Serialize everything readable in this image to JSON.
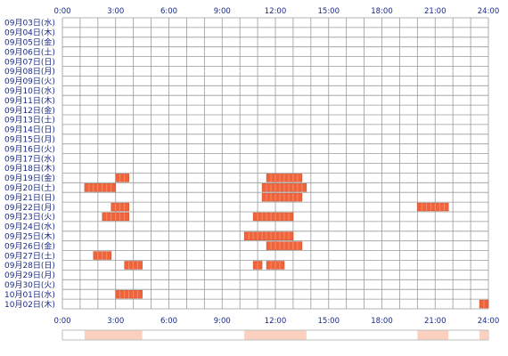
{
  "chart_data": {
    "type": "heatmap",
    "x_ticks": [
      "0:00",
      "3:00",
      "6:00",
      "9:00",
      "12:00",
      "15:00",
      "18:00",
      "21:00",
      "24:00"
    ],
    "x_range_hours": [
      0,
      24
    ],
    "rows": [
      "09月03日(水)",
      "09月04日(木)",
      "09月05日(金)",
      "09月06日(土)",
      "09月07日(日)",
      "09月08日(月)",
      "09月09日(火)",
      "09月10日(水)",
      "09月11日(木)",
      "09月12日(金)",
      "09月13日(土)",
      "09月14日(日)",
      "09月15日(月)",
      "09月16日(火)",
      "09月17日(水)",
      "09月18日(木)",
      "09月19日(金)",
      "09月20日(土)",
      "09月21日(日)",
      "09月22日(月)",
      "09月23日(火)",
      "09月24日(水)",
      "09月25日(木)",
      "09月26日(金)",
      "09月27日(土)",
      "09月28日(日)",
      "09月29日(月)",
      "09月30日(火)",
      "10月01日(水)",
      "10月02日(木)"
    ],
    "activity": [
      {
        "row": 16,
        "start": 3.0,
        "end": 3.75
      },
      {
        "row": 17,
        "start": 1.25,
        "end": 3.0
      },
      {
        "row": 17,
        "start": 11.25,
        "end": 13.75
      },
      {
        "row": 16,
        "start": 11.5,
        "end": 13.5
      },
      {
        "row": 18,
        "start": 11.25,
        "end": 13.5
      },
      {
        "row": 19,
        "start": 2.75,
        "end": 3.75
      },
      {
        "row": 19,
        "start": 20.0,
        "end": 21.75
      },
      {
        "row": 20,
        "start": 2.25,
        "end": 3.75
      },
      {
        "row": 20,
        "start": 10.75,
        "end": 13.0
      },
      {
        "row": 22,
        "start": 10.25,
        "end": 13.0
      },
      {
        "row": 23,
        "start": 11.5,
        "end": 13.5
      },
      {
        "row": 24,
        "start": 1.75,
        "end": 2.75
      },
      {
        "row": 25,
        "start": 3.5,
        "end": 4.5
      },
      {
        "row": 25,
        "start": 10.75,
        "end": 11.25
      },
      {
        "row": 25,
        "start": 11.5,
        "end": 12.5
      },
      {
        "row": 28,
        "start": 3.0,
        "end": 4.5
      },
      {
        "row": 29,
        "start": 23.5,
        "end": 24.0
      }
    ],
    "summary_bands": [
      {
        "start": 1.25,
        "end": 4.5
      },
      {
        "start": 10.25,
        "end": 13.75
      },
      {
        "start": 20.0,
        "end": 21.75
      },
      {
        "start": 23.5,
        "end": 24.0
      }
    ],
    "colors": {
      "cell_fill": "#f0643c",
      "cell_stroke": "#c44a28",
      "grid_line": "#9a9a9a",
      "label_text": "#1a2a8a",
      "band_fill": "#fbd0bf"
    }
  }
}
